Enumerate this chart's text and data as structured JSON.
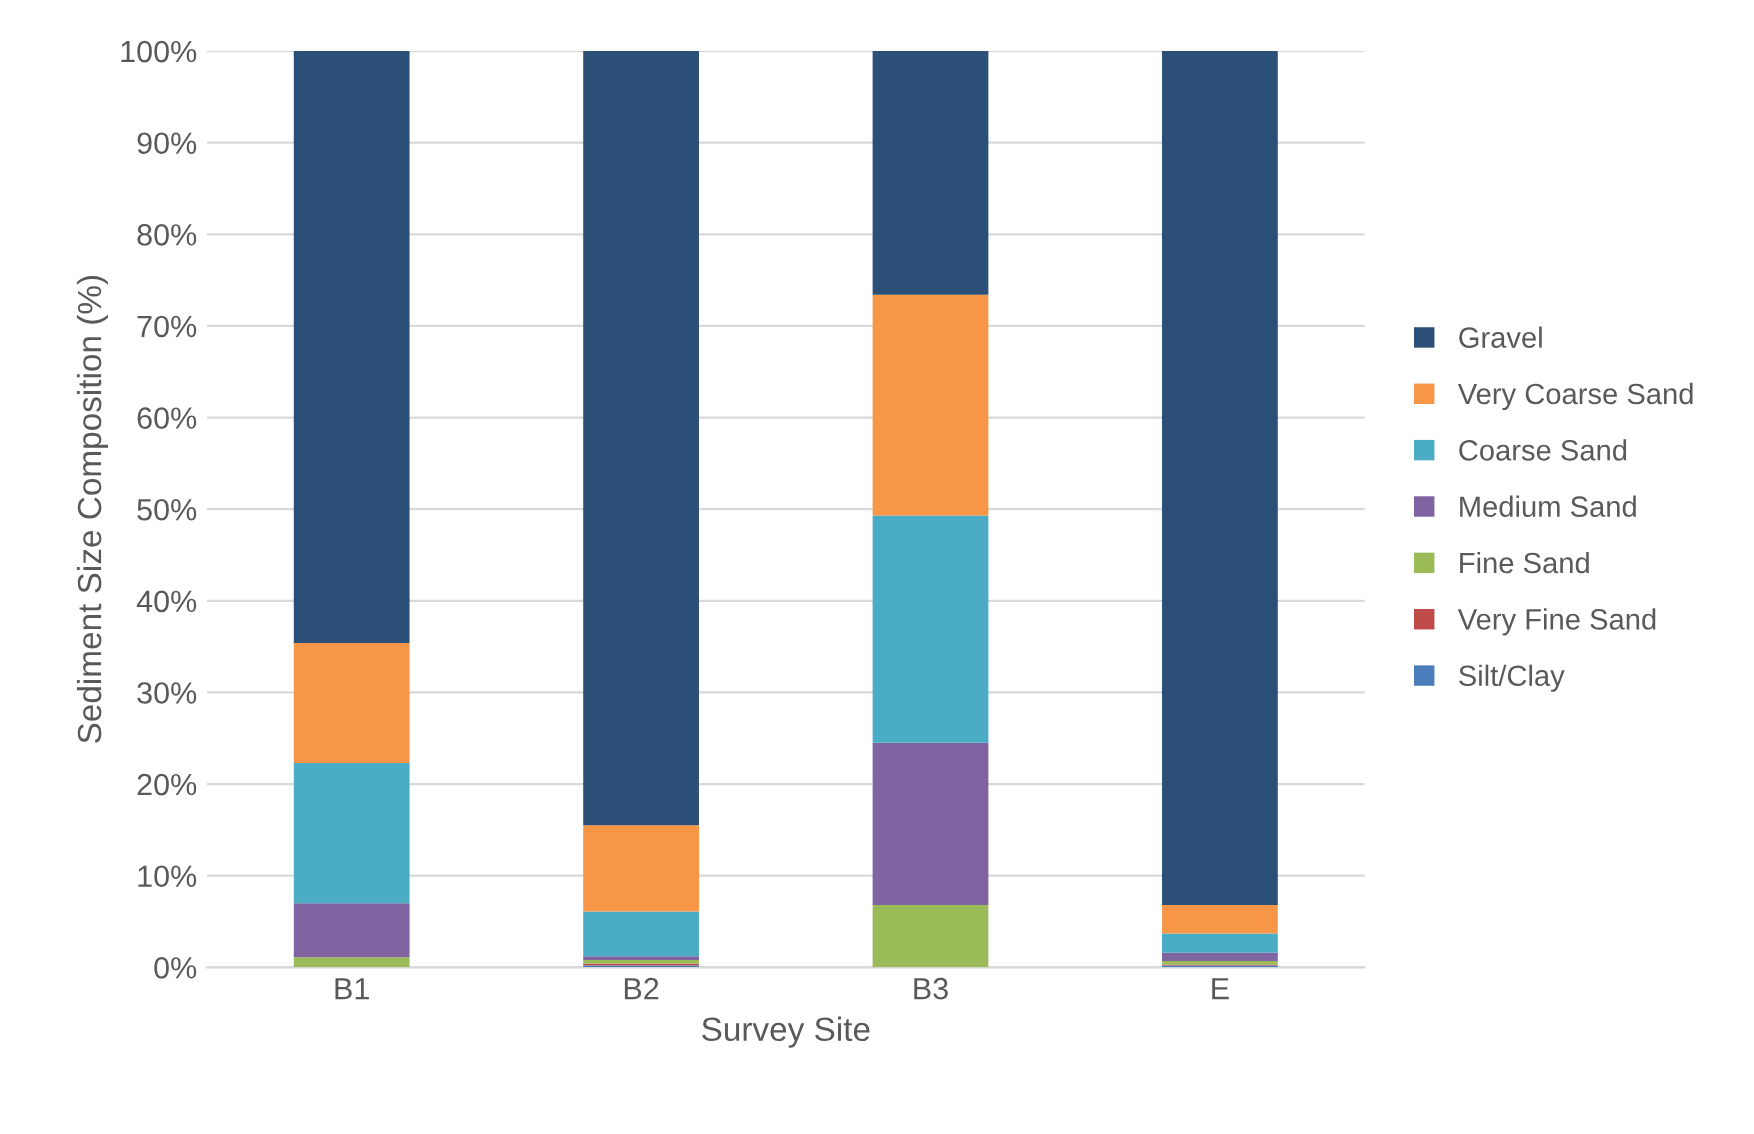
{
  "chart_data": {
    "type": "bar",
    "stacked": true,
    "xlabel": "Survey Site",
    "ylabel": "Sediment Size Composition (%)",
    "categories": [
      "B1",
      "B2",
      "B3",
      "E"
    ],
    "series": [
      {
        "name": "Silt/Clay",
        "color": "#4a7ebb",
        "values": [
          0,
          0.2,
          0,
          0.2
        ]
      },
      {
        "name": "Very Fine Sand",
        "color": "#be4b48",
        "values": [
          0,
          0.2,
          0,
          0.1
        ]
      },
      {
        "name": "Fine Sand",
        "color": "#9bbb59",
        "values": [
          1.1,
          0.4,
          6.8,
          0.4
        ]
      },
      {
        "name": "Medium Sand",
        "color": "#8064a2",
        "values": [
          5.9,
          0.4,
          17.7,
          0.9
        ]
      },
      {
        "name": "Coarse Sand",
        "color": "#4bacc6",
        "values": [
          15.3,
          4.9,
          24.8,
          2.1
        ]
      },
      {
        "name": "Very Coarse Sand",
        "color": "#f79646",
        "values": [
          13.1,
          9.4,
          24.1,
          3.1
        ]
      },
      {
        "name": "Gravel",
        "color": "#2c4f77",
        "values": [
          64.6,
          84.5,
          26.6,
          93.2
        ]
      }
    ],
    "ylim": [
      0,
      100
    ],
    "yticks": [
      {
        "value": 0,
        "label": "0%"
      },
      {
        "value": 10,
        "label": "10%"
      },
      {
        "value": 20,
        "label": "20%"
      },
      {
        "value": 30,
        "label": "30%"
      },
      {
        "value": 40,
        "label": "40%"
      },
      {
        "value": 50,
        "label": "50%"
      },
      {
        "value": 60,
        "label": "60%"
      },
      {
        "value": 70,
        "label": "70%"
      },
      {
        "value": 80,
        "label": "80%"
      },
      {
        "value": 90,
        "label": "90%"
      },
      {
        "value": 100,
        "label": "100%"
      }
    ],
    "grid": "y",
    "legend": "right"
  }
}
